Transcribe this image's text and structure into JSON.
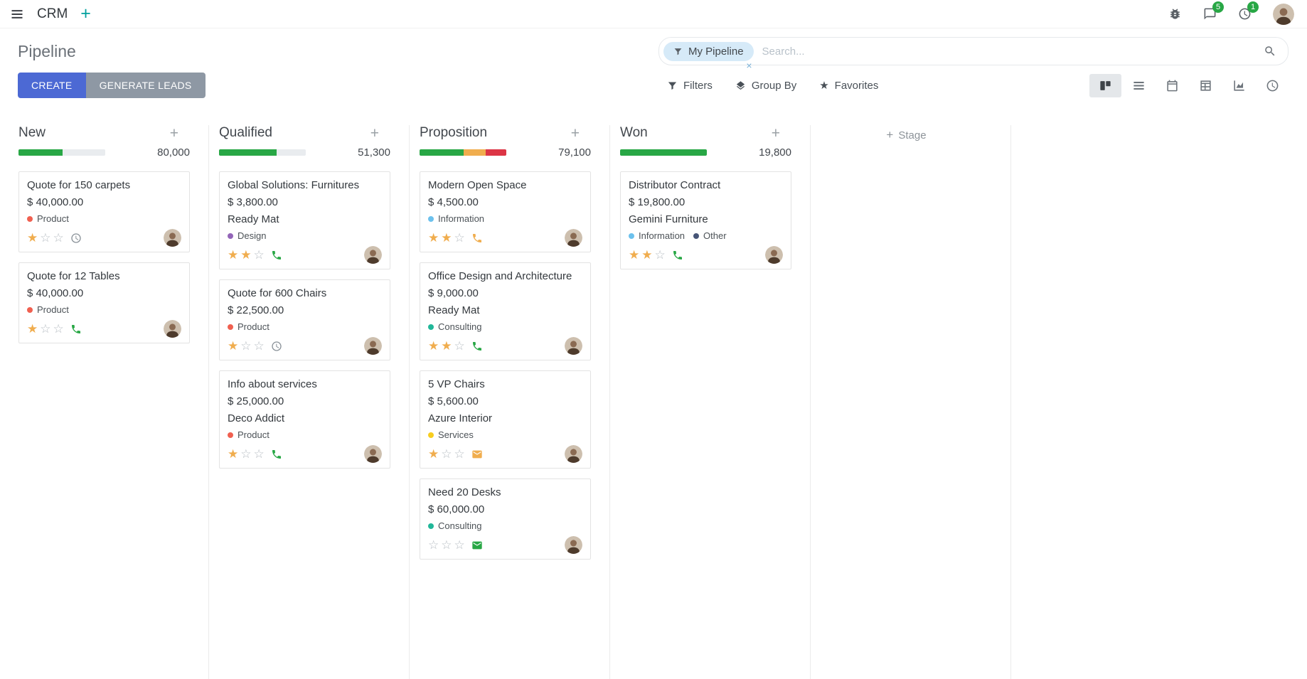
{
  "colors": {
    "accent": "#4c69d4",
    "secondary": "#8e98a4",
    "success": "#28a745",
    "warning": "#f0ad4e",
    "danger": "#dc3545",
    "star": "#f0ad4e",
    "muted_bar": "#e9ecef",
    "badge": "#28a745",
    "teal": "#00a09d",
    "facet_bg": "#d6eaf8"
  },
  "navbar": {
    "app_name": "CRM",
    "message_badge": "5",
    "activity_badge": "1"
  },
  "control_panel": {
    "title": "Pipeline",
    "create_label": "CREATE",
    "generate_leads_label": "GENERATE LEADS",
    "filters_label": "Filters",
    "group_by_label": "Group By",
    "favorites_label": "Favorites",
    "search": {
      "facet_label": "My Pipeline",
      "placeholder": "Search...",
      "remove_label": "×"
    }
  },
  "icons": {
    "navbar": [
      "apps-menu-icon",
      "add-tab-icon",
      "bug-icon",
      "messages-icon",
      "activity-clock-icon",
      "user-avatar"
    ],
    "search": [
      "filter-facet-icon",
      "search-icon",
      "facet-remove-icon"
    ],
    "filter_row": [
      "filter-icon",
      "group-by-layers-icon",
      "favorites-star-icon"
    ],
    "view_switcher": [
      "kanban-view-icon",
      "list-view-icon",
      "calendar-view-icon",
      "pivot-view-icon",
      "graph-view-icon",
      "activity-view-icon"
    ],
    "cards": [
      "clock-icon",
      "phone-icon",
      "envelope-icon",
      "salesperson-avatar"
    ]
  },
  "kanban": {
    "add_stage_label": "Stage",
    "columns": [
      {
        "name": "New",
        "counter": "80,000",
        "progress": [
          {
            "color": "#28a745",
            "pct": 51
          }
        ],
        "cards": [
          {
            "title": "Quote for 150 carpets",
            "amount": "$ 40,000.00",
            "tags": [
              {
                "label": "Product",
                "color": "#f06050"
              }
            ],
            "stars": 1,
            "activity": {
              "type": "clock",
              "color": "#878f96"
            }
          },
          {
            "title": "Quote for 12 Tables",
            "amount": "$ 40,000.00",
            "tags": [
              {
                "label": "Product",
                "color": "#f06050"
              }
            ],
            "stars": 1,
            "activity": {
              "type": "phone",
              "color": "#28a745"
            }
          }
        ]
      },
      {
        "name": "Qualified",
        "counter": "51,300",
        "progress": [
          {
            "color": "#28a745",
            "pct": 66
          }
        ],
        "cards": [
          {
            "title": "Global Solutions: Furnitures",
            "amount": "$ 3,800.00",
            "partner": "Ready Mat",
            "tags": [
              {
                "label": "Design",
                "color": "#9365b8"
              }
            ],
            "stars": 2,
            "activity": {
              "type": "phone",
              "color": "#28a745"
            }
          },
          {
            "title": "Quote for 600 Chairs",
            "amount": "$ 22,500.00",
            "tags": [
              {
                "label": "Product",
                "color": "#f06050"
              }
            ],
            "stars": 1,
            "activity": {
              "type": "clock",
              "color": "#878f96"
            }
          },
          {
            "title": "Info about services",
            "amount": "$ 25,000.00",
            "partner": "Deco Addict",
            "tags": [
              {
                "label": "Product",
                "color": "#f06050"
              }
            ],
            "stars": 1,
            "activity": {
              "type": "phone",
              "color": "#28a745"
            }
          }
        ]
      },
      {
        "name": "Proposition",
        "counter": "79,100",
        "progress": [
          {
            "color": "#28a745",
            "pct": 51
          },
          {
            "color": "#f0ad4e",
            "pct": 25
          },
          {
            "color": "#dc3545",
            "pct": 24
          }
        ],
        "cards": [
          {
            "title": "Modern Open Space",
            "amount": "$ 4,500.00",
            "tags": [
              {
                "label": "Information",
                "color": "#6cc1ed"
              }
            ],
            "stars": 2,
            "activity": {
              "type": "phone",
              "color": "#f0ad4e"
            }
          },
          {
            "title": "Office Design and Architecture",
            "amount": "$ 9,000.00",
            "partner": "Ready Mat",
            "tags": [
              {
                "label": "Consulting",
                "color": "#21b799"
              }
            ],
            "stars": 2,
            "activity": {
              "type": "phone",
              "color": "#28a745"
            }
          },
          {
            "title": "5 VP Chairs",
            "amount": "$ 5,600.00",
            "partner": "Azure Interior",
            "tags": [
              {
                "label": "Services",
                "color": "#f7cd1f"
              }
            ],
            "stars": 1,
            "activity": {
              "type": "envelope",
              "color": "#f0ad4e"
            }
          },
          {
            "title": "Need 20 Desks",
            "amount": "$ 60,000.00",
            "tags": [
              {
                "label": "Consulting",
                "color": "#21b799"
              }
            ],
            "stars": 0,
            "activity": {
              "type": "envelope",
              "color": "#28a745"
            }
          }
        ]
      },
      {
        "name": "Won",
        "counter": "19,800",
        "progress": [
          {
            "color": "#28a745",
            "pct": 100
          }
        ],
        "cards": [
          {
            "title": "Distributor Contract",
            "amount": "$ 19,800.00",
            "partner": "Gemini Furniture",
            "tags": [
              {
                "label": "Information",
                "color": "#6cc1ed"
              },
              {
                "label": "Other",
                "color": "#475577"
              }
            ],
            "stars": 2,
            "activity": {
              "type": "phone",
              "color": "#28a745"
            }
          }
        ]
      }
    ]
  }
}
